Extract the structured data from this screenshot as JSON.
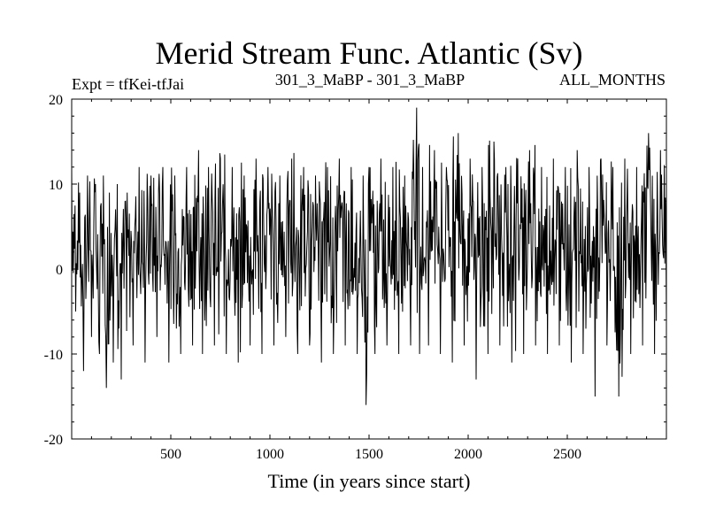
{
  "chart_data": {
    "type": "line",
    "title": "Merid Stream Func. Atlantic (Sv)",
    "subtitle_left": "Expt = tfKei-tfJai",
    "subtitle_center": "301_3_MaBP - 301_3_MaBP",
    "subtitle_right": "ALL_MONTHS",
    "xlabel": "Time (in years since start)",
    "ylabel": "",
    "xlim": [
      0,
      3000
    ],
    "ylim": [
      -20,
      20
    ],
    "xticks": [
      500,
      1000,
      1500,
      2000,
      2500
    ],
    "xtick_labels": [
      "500",
      "1000",
      "1500",
      "2000",
      "2500"
    ],
    "yticks": [
      -20,
      -10,
      0,
      10,
      20
    ],
    "ytick_labels": [
      "-20",
      "-10",
      "0",
      "10",
      "20"
    ],
    "grid": false,
    "series": [
      {
        "color": "#000000",
        "values_description_note_free": true,
        "x": [
          0,
          20,
          40,
          60,
          80,
          100,
          120,
          140,
          160,
          175,
          190,
          210,
          230,
          250,
          280,
          310,
          340,
          370,
          400,
          430,
          460,
          490,
          520,
          550,
          580,
          610,
          640,
          660,
          690,
          720,
          750,
          780,
          810,
          840,
          870,
          900,
          930,
          960,
          990,
          1020,
          1050,
          1080,
          1110,
          1140,
          1170,
          1200,
          1230,
          1260,
          1290,
          1320,
          1350,
          1380,
          1410,
          1440,
          1470,
          1485,
          1500,
          1530,
          1560,
          1590,
          1620,
          1650,
          1680,
          1710,
          1740,
          1755,
          1770,
          1800,
          1830,
          1860,
          1890,
          1920,
          1950,
          1980,
          2010,
          2040,
          2070,
          2100,
          2130,
          2160,
          2190,
          2220,
          2250,
          2280,
          2310,
          2340,
          2370,
          2400,
          2430,
          2460,
          2490,
          2520,
          2550,
          2580,
          2610,
          2640,
          2670,
          2700,
          2730,
          2760,
          2790,
          2820,
          2850,
          2880,
          2910,
          2940,
          2970,
          3000
        ],
        "y": [
          12,
          -5,
          9,
          -12,
          11,
          -8,
          10,
          -10,
          11,
          -14,
          9,
          -11,
          10,
          -13,
          9,
          -9,
          12,
          -11,
          11,
          -8,
          12,
          -11,
          11,
          -10,
          12,
          -9,
          14,
          -10,
          12,
          -9,
          13,
          -10,
          12,
          -11,
          11,
          -9,
          13,
          -10,
          12,
          -9,
          11,
          -8,
          13,
          -10,
          12,
          -9,
          11,
          -11,
          12,
          -10,
          13,
          -9,
          12,
          -10,
          11,
          -16,
          12,
          -10,
          13,
          -9,
          12,
          -10,
          11,
          -9,
          19,
          -10,
          12,
          -9,
          14,
          -10,
          12,
          -11,
          16,
          -9,
          13,
          -13,
          12,
          -10,
          15,
          -9,
          12,
          -11,
          13,
          -10,
          14,
          -9,
          12,
          -10,
          13,
          -9,
          12,
          -11,
          14,
          -10,
          12,
          -15,
          13,
          -9,
          12,
          -15,
          13,
          -10,
          12,
          -9,
          16,
          -10,
          14,
          -6
        ]
      }
    ]
  }
}
